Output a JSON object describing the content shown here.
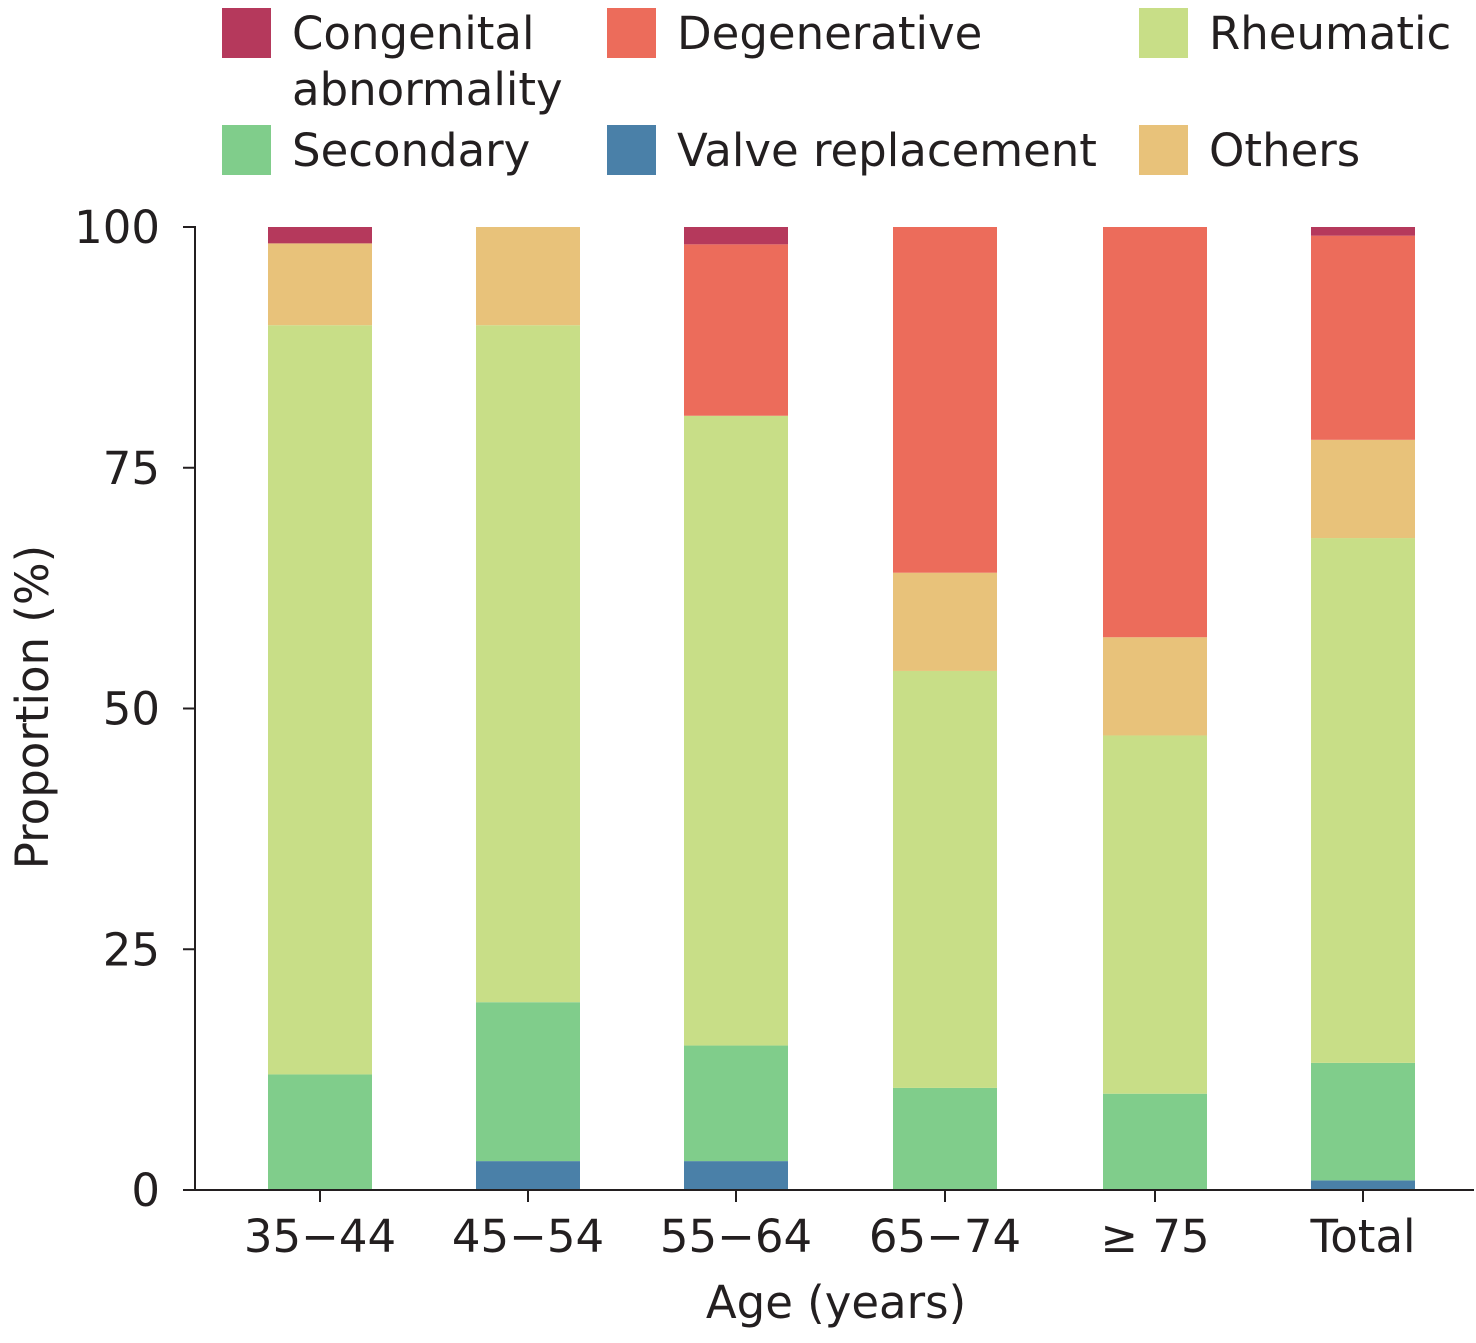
{
  "chart_data": {
    "type": "bar",
    "stacked": true,
    "categories": [
      "35−44",
      "45−54",
      "55−64",
      "65−74",
      "≥ 75",
      "Total"
    ],
    "xlabel": "Age (years)",
    "ylabel": "Proportion (%)",
    "ylim": [
      0,
      100
    ],
    "yticks": [
      "0",
      "25",
      "50",
      "75",
      "100"
    ],
    "grid": false,
    "legend_position": "top",
    "legend_entries": [
      "Congenital abnormality",
      "Degenerative",
      "Rheumatic",
      "Secondary",
      "Valve replacement",
      "Others"
    ],
    "legend_label_lines": {
      "Congenital abnormality": [
        "Congenital",
        "abnormality"
      ]
    },
    "colors": {
      "Congenital abnormality": "#b5395c",
      "Degenerative": "#ec6c5b",
      "Rheumatic": "#c8de87",
      "Secondary": "#80cd8b",
      "Valve replacement": "#4a80a8",
      "Others": "#e8c27a"
    },
    "stack_order": [
      "Valve replacement",
      "Secondary",
      "Rheumatic",
      "Others",
      "Degenerative",
      "Congenital abnormality"
    ],
    "series": [
      {
        "name": "Valve replacement",
        "values": [
          0,
          3,
          3,
          0,
          0,
          1
        ]
      },
      {
        "name": "Secondary",
        "values": [
          12,
          16.5,
          12,
          10.6,
          10,
          12.2
        ]
      },
      {
        "name": "Rheumatic",
        "values": [
          77.8,
          70.3,
          65.4,
          43.3,
          37.2,
          54.5
        ]
      },
      {
        "name": "Others",
        "values": [
          8.5,
          10.2,
          0,
          10.2,
          10.2,
          10.2
        ]
      },
      {
        "name": "Degenerative",
        "values": [
          0,
          0,
          17.8,
          35.9,
          42.6,
          21.2
        ]
      },
      {
        "name": "Congenital abnormality",
        "values": [
          1.7,
          0,
          1.8,
          0,
          0,
          0.9
        ]
      }
    ]
  }
}
